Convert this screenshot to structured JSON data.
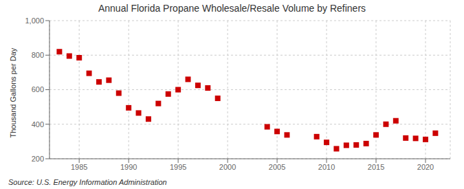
{
  "chart_data": {
    "type": "scatter",
    "title": "Annual Florida Propane Wholesale/Resale Volume by Refiners",
    "ylabel": "Thousand Gallons per Day",
    "source": "Source: U.S. Energy Information Administration",
    "x": [
      1983,
      1984,
      1985,
      1986,
      1987,
      1988,
      1989,
      1990,
      1991,
      1992,
      1993,
      1994,
      1995,
      1996,
      1997,
      1998,
      1999,
      2004,
      2005,
      2006,
      2009,
      2010,
      2011,
      2012,
      2013,
      2014,
      2015,
      2016,
      2017,
      2018,
      2019,
      2020,
      2021
    ],
    "values": [
      820,
      795,
      785,
      695,
      645,
      655,
      580,
      495,
      465,
      430,
      520,
      575,
      600,
      660,
      625,
      610,
      550,
      385,
      358,
      338,
      328,
      295,
      258,
      278,
      280,
      288,
      338,
      400,
      420,
      320,
      318,
      312,
      348
    ],
    "color": "#cc0000",
    "marker": "square",
    "xlim": [
      1982,
      2022.5
    ],
    "xticks": [
      1985,
      1990,
      1995,
      2000,
      2005,
      2010,
      2015,
      2020
    ],
    "ylim": [
      200,
      1000
    ],
    "yticks": [
      200,
      400,
      600,
      800,
      {
        "value": 1000,
        "label": "1,000"
      }
    ],
    "grid": true
  }
}
